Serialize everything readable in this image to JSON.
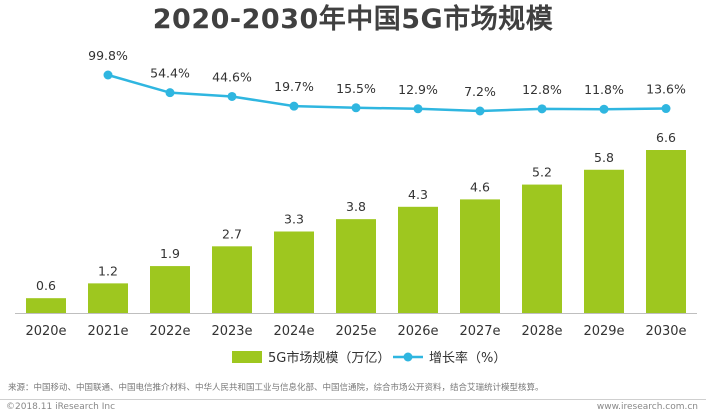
{
  "title": "2020-2030年中国5G市场规模",
  "chart_data": {
    "type": "bar+line",
    "categories": [
      "2020e",
      "2021e",
      "2022e",
      "2023e",
      "2024e",
      "2025e",
      "2026e",
      "2027e",
      "2028e",
      "2029e",
      "2030e"
    ],
    "series": [
      {
        "name": "5G市场规模（万亿）",
        "type": "bar",
        "values": [
          0.6,
          1.2,
          1.9,
          2.7,
          3.3,
          3.8,
          4.3,
          4.6,
          5.2,
          5.8,
          6.6
        ],
        "color": "#9ec71f"
      },
      {
        "name": "增长率（%）",
        "type": "line",
        "values": [
          null,
          99.8,
          54.4,
          44.6,
          19.7,
          15.5,
          12.9,
          7.2,
          12.8,
          11.8,
          13.6
        ],
        "color": "#2fb6e0"
      }
    ],
    "bar_labels": [
      "0.6",
      "1.2",
      "1.9",
      "2.7",
      "3.3",
      "3.8",
      "4.3",
      "4.6",
      "5.2",
      "5.8",
      "6.6"
    ],
    "line_labels": [
      null,
      "99.8%",
      "54.4%",
      "44.6%",
      "19.7%",
      "15.5%",
      "12.9%",
      "7.2%",
      "12.8%",
      "11.8%",
      "13.6%"
    ],
    "bar_ylim": [
      0,
      7
    ],
    "line_ylim": [
      0,
      100
    ],
    "legend_position": "bottom-center",
    "grid": false
  },
  "source": "来源：中国移动、中国联通、中国电信推介材料、中华人民共和国工业与信息化部、中国信通院，综合市场公开资料，结合艾瑞统计模型核算。",
  "copyright": "©2018.11 iResearch Inc",
  "site": "www.iresearch.com.cn"
}
